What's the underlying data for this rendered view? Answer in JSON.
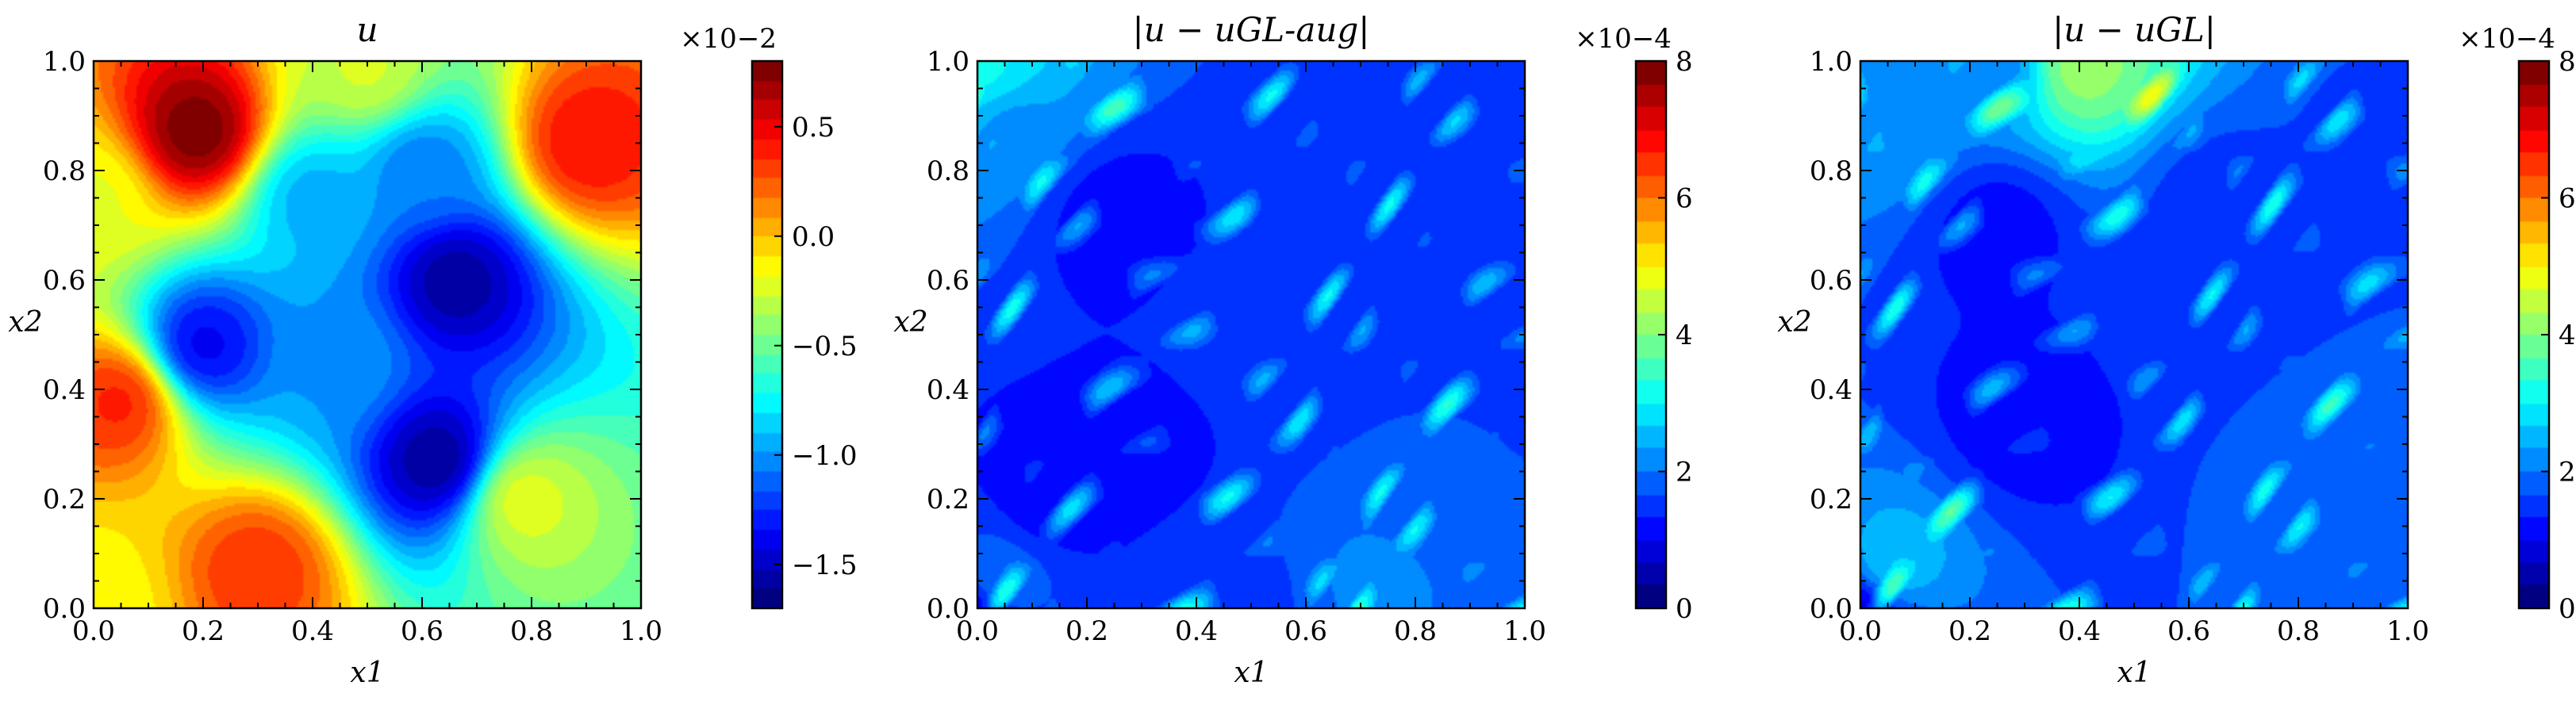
{
  "chart_data": [
    {
      "type": "heatmap",
      "title": "u",
      "xlabel": "x1",
      "ylabel": "x2",
      "xlim": [
        0.0,
        1.0
      ],
      "ylim": [
        0.0,
        1.0
      ],
      "x_ticks": [
        "0.0",
        "0.2",
        "0.4",
        "0.6",
        "0.8",
        "1.0"
      ],
      "y_ticks": [
        "0.0",
        "0.2",
        "0.4",
        "0.6",
        "0.8",
        "1.0"
      ],
      "colormap": "jet",
      "colorbar": {
        "exponent": "×10−2",
        "range": [
          -1.7,
          0.8
        ],
        "ticks": [
          -1.5,
          -1.0,
          -0.5,
          0.0,
          0.5
        ],
        "tick_labels": [
          "−1.5",
          "−1.0",
          "−0.5",
          "0.0",
          "0.5"
        ]
      },
      "features": [
        {
          "x": 0.0,
          "y": 0.0,
          "v": 0.62
        },
        {
          "x": 0.19,
          "y": 0.87,
          "v": 1.0
        },
        {
          "x": 0.9,
          "y": 0.85,
          "v": 0.86
        },
        {
          "x": 0.05,
          "y": 0.38,
          "v": 0.84
        },
        {
          "x": 0.3,
          "y": 0.07,
          "v": 0.82
        },
        {
          "x": 0.0,
          "y": 0.75,
          "v": 0.6
        },
        {
          "x": 0.5,
          "y": 0.98,
          "v": 0.58
        },
        {
          "x": 0.78,
          "y": 0.2,
          "v": 0.6
        },
        {
          "x": 0.66,
          "y": 0.6,
          "v": 0.04
        },
        {
          "x": 0.63,
          "y": 0.27,
          "v": 0.03
        },
        {
          "x": 0.2,
          "y": 0.48,
          "v": 0.12
        },
        {
          "x": 0.4,
          "y": 0.75,
          "v": 0.3
        },
        {
          "x": 0.45,
          "y": 0.45,
          "v": 0.28
        },
        {
          "x": 0.6,
          "y": 0.8,
          "v": 0.25
        }
      ]
    },
    {
      "type": "heatmap",
      "title": "|u − uGL-aug|",
      "xlabel": "x1",
      "ylabel": "x2",
      "xlim": [
        0.0,
        1.0
      ],
      "ylim": [
        0.0,
        1.0
      ],
      "x_ticks": [
        "0.0",
        "0.2",
        "0.4",
        "0.6",
        "0.8",
        "1.0"
      ],
      "y_ticks": [
        "0.0",
        "0.2",
        "0.4",
        "0.6",
        "0.8",
        "1.0"
      ],
      "colormap": "jet",
      "colorbar": {
        "exponent": "×10−4",
        "range": [
          0,
          8
        ],
        "ticks": [
          0,
          2,
          4,
          6,
          8
        ],
        "tick_labels": [
          "0",
          "2",
          "4",
          "6",
          "8"
        ]
      },
      "features": [
        {
          "x": 0.0,
          "y": 0.0,
          "v": 0.1
        },
        {
          "x": 0.06,
          "y": 0.88,
          "v": 0.42
        },
        {
          "x": 0.01,
          "y": 0.98,
          "v": 0.62
        },
        {
          "x": 0.03,
          "y": 0.04,
          "v": 0.45
        },
        {
          "x": 0.72,
          "y": 0.05,
          "v": 0.4
        },
        {
          "x": 0.5,
          "y": 0.02,
          "v": 0.3
        },
        {
          "x": 0.85,
          "y": 0.25,
          "v": 0.32
        },
        {
          "x": 0.5,
          "y": 0.5,
          "v": 0.28
        },
        {
          "x": 0.62,
          "y": 0.78,
          "v": 0.25
        },
        {
          "x": 0.25,
          "y": 0.72,
          "v": 0.2
        },
        {
          "x": 0.97,
          "y": 0.55,
          "v": 0.25
        },
        {
          "x": 0.3,
          "y": 0.3,
          "v": 0.22
        },
        {
          "x": 0.13,
          "y": 0.2,
          "v": 0.2
        }
      ]
    },
    {
      "type": "heatmap",
      "title": "|u − uGL|",
      "xlabel": "x1",
      "ylabel": "x2",
      "xlim": [
        0.0,
        1.0
      ],
      "ylim": [
        0.0,
        1.0
      ],
      "x_ticks": [
        "0.0",
        "0.2",
        "0.4",
        "0.6",
        "0.8",
        "1.0"
      ],
      "y_ticks": [
        "0.0",
        "0.2",
        "0.4",
        "0.6",
        "0.8",
        "1.0"
      ],
      "colormap": "jet",
      "colorbar": {
        "exponent": "×10−4",
        "range": [
          0,
          8
        ],
        "ticks": [
          0,
          2,
          4,
          6,
          8
        ],
        "tick_labels": [
          "0",
          "2",
          "4",
          "6",
          "8"
        ]
      },
      "features": [
        {
          "x": 0.0,
          "y": 0.0,
          "v": 0.1
        },
        {
          "x": 0.05,
          "y": 0.07,
          "v": 0.55
        },
        {
          "x": 0.06,
          "y": 0.88,
          "v": 0.45
        },
        {
          "x": 0.4,
          "y": 0.99,
          "v": 0.85
        },
        {
          "x": 0.25,
          "y": 0.99,
          "v": 0.4
        },
        {
          "x": 0.8,
          "y": 0.25,
          "v": 0.35
        },
        {
          "x": 0.55,
          "y": 0.5,
          "v": 0.25
        },
        {
          "x": 0.65,
          "y": 0.75,
          "v": 0.28
        },
        {
          "x": 0.25,
          "y": 0.7,
          "v": 0.2
        },
        {
          "x": 0.3,
          "y": 0.35,
          "v": 0.2
        },
        {
          "x": 0.95,
          "y": 0.85,
          "v": 0.3
        }
      ]
    }
  ]
}
